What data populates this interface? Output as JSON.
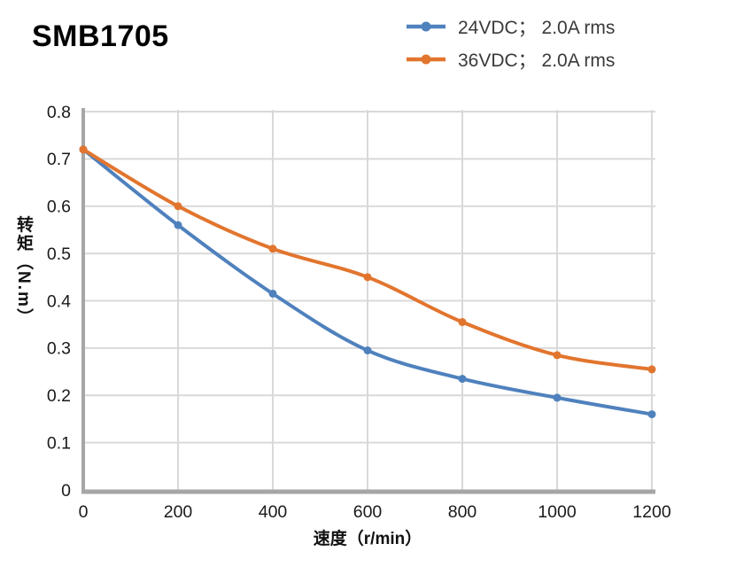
{
  "header": {
    "title": "SMB1705"
  },
  "legend": {
    "items": [
      {
        "label": "24VDC； 2.0A rms",
        "color": "#4F81BD",
        "key": "24vdc"
      },
      {
        "label": "36VDC； 2.0A rms",
        "color": "#E2752E",
        "key": "36vdc"
      }
    ]
  },
  "chart_data": {
    "type": "line",
    "x": [
      0,
      200,
      400,
      600,
      800,
      1000,
      1200
    ],
    "series": [
      {
        "name": "24VDC； 2.0A rms",
        "key": "24vdc",
        "color": "#4F81BD",
        "values": [
          0.72,
          0.56,
          0.415,
          0.295,
          0.235,
          0.195,
          0.16
        ]
      },
      {
        "name": "36VDC； 2.0A rms",
        "key": "36vdc",
        "color": "#E2752E",
        "values": [
          0.72,
          0.6,
          0.51,
          0.45,
          0.355,
          0.285,
          0.255
        ]
      }
    ],
    "title": "SMB1705",
    "xlabel": "速度（r/min）",
    "ylabel": "转矩（N.m）",
    "xlim": [
      0,
      1200
    ],
    "ylim": [
      0,
      0.8
    ],
    "xticks": [
      0,
      200,
      400,
      600,
      800,
      1000,
      1200
    ],
    "yticks": [
      0,
      0.1,
      0.2,
      0.3,
      0.4,
      0.5,
      0.6,
      0.7,
      0.8
    ],
    "grid": true,
    "smooth": true,
    "marker": "circle",
    "legend_position": "top-right",
    "colors": {
      "grid": "#D9D9D9",
      "axis": "#A6A6A6",
      "tick_text": "#1a1a1a"
    }
  }
}
